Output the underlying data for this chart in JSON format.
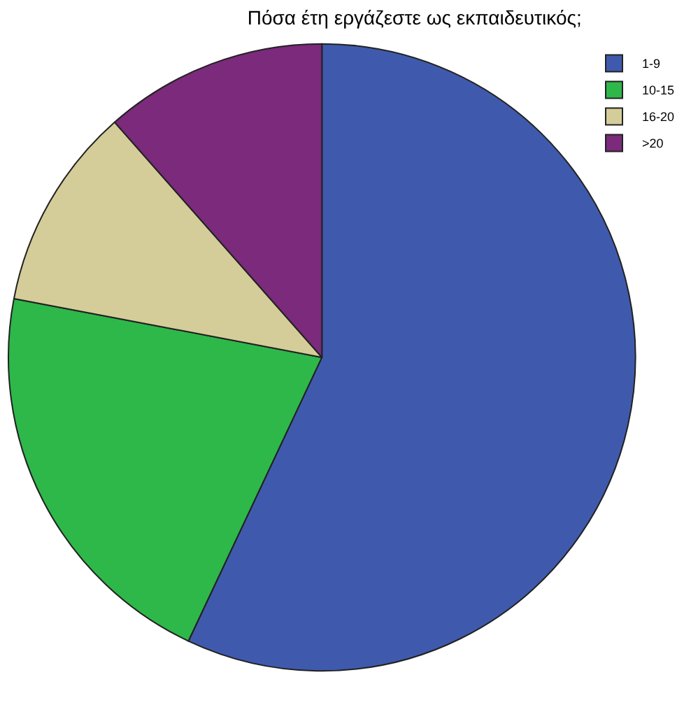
{
  "chart_data": {
    "type": "pie",
    "title": "Πόσα έτη εργάζεστε ως εκπαιδευτικός;",
    "categories": [
      "1-9",
      "10-15",
      "16-20",
      ">20"
    ],
    "values": [
      57,
      21,
      10.5,
      11.5
    ],
    "colors": [
      "#3f5aad",
      "#2eb84a",
      "#d4cd99",
      "#7b2a7c"
    ],
    "legend": "top right"
  }
}
